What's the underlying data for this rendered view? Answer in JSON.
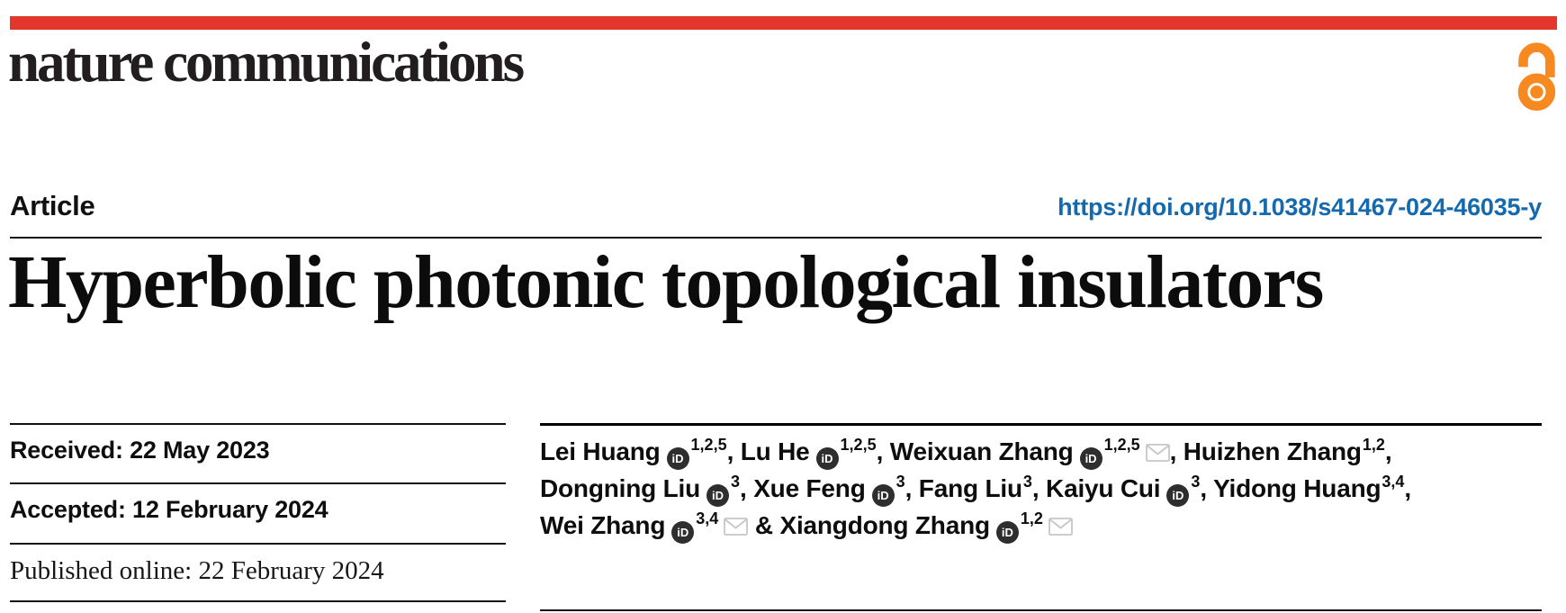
{
  "masthead": {
    "journal": "nature communications",
    "red_bar_color": "#e5362b",
    "open_access_color": "#f6891f",
    "open_access_icon": "open-access-lock-icon"
  },
  "article_row": {
    "type_label": "Article",
    "doi_link": "https://doi.org/10.1038/s41467-024-46035-y",
    "doi_color": "#1569ad"
  },
  "title": "Hyperbolic photonic topological insulators",
  "dates": {
    "received": "Received: 22 May 2023",
    "accepted": "Accepted: 12 February 2024",
    "published": "Published online: 22 February 2024"
  },
  "authors": {
    "orcid_icon_label": "iD",
    "lines": [
      [
        {
          "name": "Lei Huang",
          "orcid": true,
          "sup": "1,2,5",
          "email": false,
          "sep": ", "
        },
        {
          "name": "Lu He",
          "orcid": true,
          "sup": "1,2,5",
          "email": false,
          "sep": ", "
        },
        {
          "name": "Weixuan Zhang",
          "orcid": true,
          "sup": "1,2,5",
          "email": true,
          "sep": ", "
        },
        {
          "name": "Huizhen Zhang",
          "orcid": false,
          "sup": "1,2",
          "email": false,
          "sep": ","
        }
      ],
      [
        {
          "name": "Dongning Liu",
          "orcid": true,
          "sup": "3",
          "email": false,
          "sep": ", "
        },
        {
          "name": "Xue Feng",
          "orcid": true,
          "sup": "3",
          "email": false,
          "sep": ", "
        },
        {
          "name": "Fang Liu",
          "orcid": false,
          "sup": "3",
          "email": false,
          "sep": ", "
        },
        {
          "name": "Kaiyu Cui",
          "orcid": true,
          "sup": "3",
          "email": false,
          "sep": ", "
        },
        {
          "name": "Yidong Huang",
          "orcid": false,
          "sup": "3,4",
          "email": false,
          "sep": ","
        }
      ],
      [
        {
          "name": "Wei Zhang",
          "orcid": true,
          "sup": "3,4",
          "email": true,
          "sep": " & "
        },
        {
          "name": "Xiangdong Zhang",
          "orcid": true,
          "sup": "1,2",
          "email": true,
          "sep": ""
        }
      ]
    ]
  }
}
